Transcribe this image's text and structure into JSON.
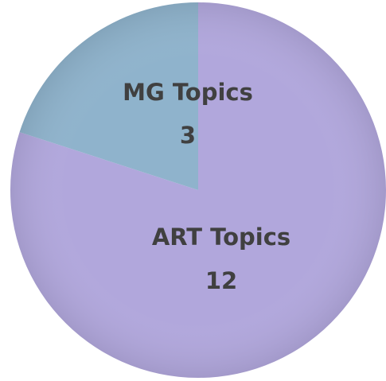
{
  "chart_data": {
    "type": "pie",
    "categories": [
      "ART Topics",
      "MG Topics"
    ],
    "values": [
      12,
      3
    ],
    "colors": [
      "#b1a7dc",
      "#8fb3cc"
    ]
  }
}
